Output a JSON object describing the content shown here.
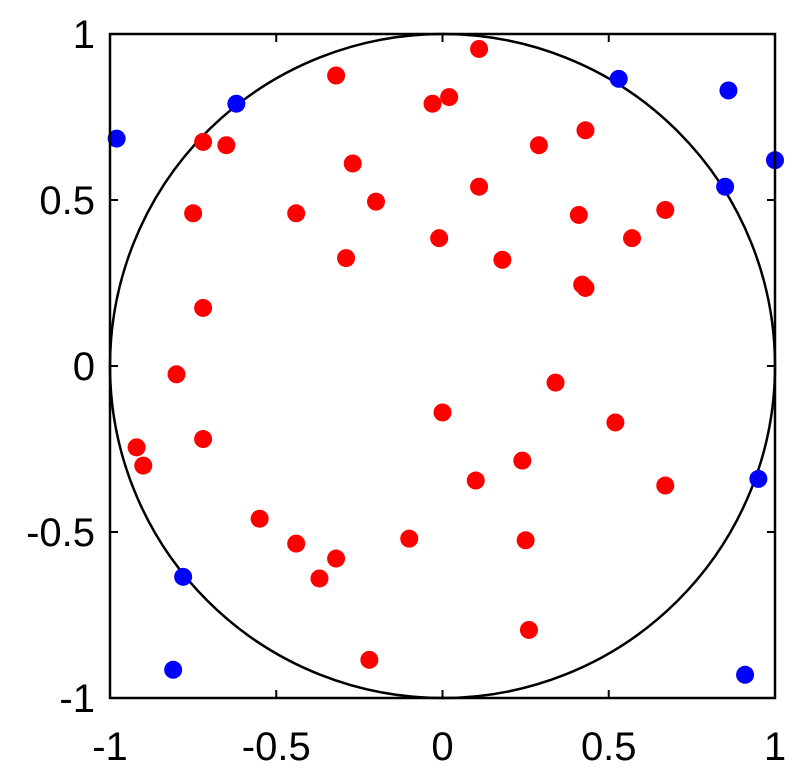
{
  "chart_data": {
    "type": "scatter",
    "title": "",
    "xlabel": "",
    "ylabel": "",
    "xlim": [
      -1,
      1
    ],
    "ylim": [
      -1,
      1
    ],
    "xticks": [
      "-1",
      "-0.5",
      "0",
      "0.5",
      "1"
    ],
    "yticks": [
      "1",
      "0.5",
      "0",
      "-0.5",
      "-1"
    ],
    "xtick_values": [
      -1,
      -0.5,
      0,
      0.5,
      1
    ],
    "ytick_values": [
      1,
      0.5,
      0,
      -0.5,
      -1
    ],
    "grid": false,
    "unit_circle": {
      "center": [
        0,
        0
      ],
      "radius": 1
    },
    "series": [
      {
        "color": "#ff0000",
        "points": [
          [
            0.11,
            0.955
          ],
          [
            -0.32,
            0.875
          ],
          [
            0.02,
            0.81
          ],
          [
            -0.03,
            0.79
          ],
          [
            0.43,
            0.71
          ],
          [
            -0.72,
            0.675
          ],
          [
            -0.65,
            0.665
          ],
          [
            0.29,
            0.665
          ],
          [
            -0.27,
            0.61
          ],
          [
            0.11,
            0.54
          ],
          [
            -0.2,
            0.495
          ],
          [
            -0.75,
            0.46
          ],
          [
            -0.44,
            0.46
          ],
          [
            0.41,
            0.455
          ],
          [
            0.67,
            0.47
          ],
          [
            -0.01,
            0.385
          ],
          [
            0.57,
            0.385
          ],
          [
            -0.29,
            0.325
          ],
          [
            0.18,
            0.32
          ],
          [
            0.42,
            0.245
          ],
          [
            0.43,
            0.235
          ],
          [
            -0.72,
            0.175
          ],
          [
            -0.8,
            -0.025
          ],
          [
            0.34,
            -0.05
          ],
          [
            0.0,
            -0.14
          ],
          [
            0.52,
            -0.17
          ],
          [
            -0.72,
            -0.22
          ],
          [
            -0.92,
            -0.245
          ],
          [
            -0.9,
            -0.3
          ],
          [
            0.24,
            -0.285
          ],
          [
            0.1,
            -0.345
          ],
          [
            0.67,
            -0.36
          ],
          [
            -0.55,
            -0.46
          ],
          [
            -0.1,
            -0.52
          ],
          [
            0.25,
            -0.525
          ],
          [
            -0.44,
            -0.535
          ],
          [
            -0.32,
            -0.58
          ],
          [
            -0.37,
            -0.64
          ],
          [
            0.26,
            -0.795
          ],
          [
            -0.22,
            -0.885
          ]
        ]
      },
      {
        "color": "#0000ff",
        "points": [
          [
            -0.98,
            0.685
          ],
          [
            -0.62,
            0.79
          ],
          [
            0.53,
            0.865
          ],
          [
            0.86,
            0.83
          ],
          [
            1.0,
            0.62
          ],
          [
            0.85,
            0.54
          ],
          [
            0.95,
            -0.34
          ],
          [
            -0.78,
            -0.635
          ],
          [
            -0.81,
            -0.915
          ],
          [
            0.91,
            -0.93
          ]
        ]
      }
    ]
  }
}
